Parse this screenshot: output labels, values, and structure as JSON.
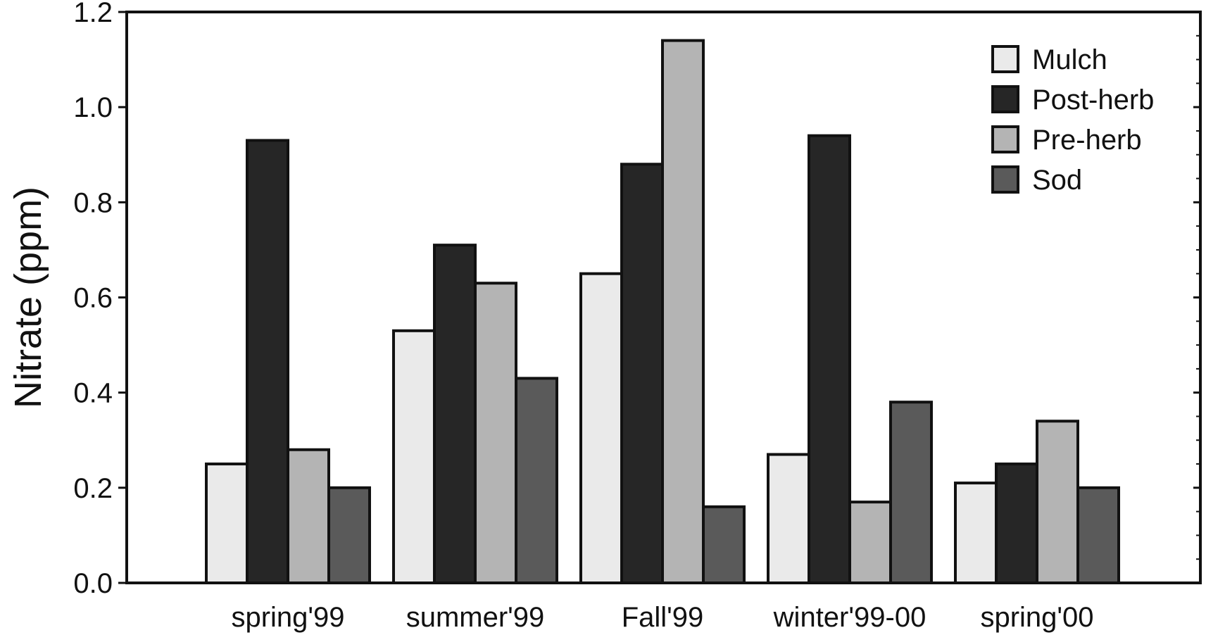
{
  "chart_data": {
    "type": "bar",
    "title": "",
    "xlabel": "",
    "ylabel": "Nitrate (ppm)",
    "ylim": [
      0,
      1.2
    ],
    "yticks": [
      "0.0",
      "0.2",
      "0.4",
      "0.6",
      "0.8",
      "1.0",
      "1.2"
    ],
    "categories": [
      "spring'99",
      "summer'99",
      "Fall'99",
      "winter'99-00",
      "spring'00"
    ],
    "series": [
      {
        "name": "Mulch",
        "color": "#eaeaea",
        "values": [
          0.25,
          0.53,
          0.65,
          0.27,
          0.21
        ]
      },
      {
        "name": "Post-herb",
        "color": "#262626",
        "values": [
          0.93,
          0.71,
          0.88,
          0.94,
          0.25
        ]
      },
      {
        "name": "Pre-herb",
        "color": "#b4b4b4",
        "values": [
          0.28,
          0.63,
          1.14,
          0.17,
          0.34
        ]
      },
      {
        "name": "Sod",
        "color": "#5a5a5a",
        "values": [
          0.2,
          0.43,
          0.16,
          0.38,
          0.2
        ]
      }
    ],
    "grid": false,
    "legend_position": "top-right"
  }
}
